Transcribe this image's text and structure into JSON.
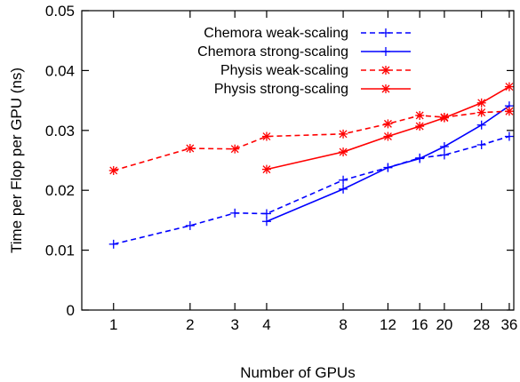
{
  "chart_data": {
    "type": "line",
    "title": "",
    "xlabel": "Number of GPUs",
    "ylabel": "Time per Flop per GPU (ns)",
    "x_scale": "log",
    "xlim": [
      0.75,
      37.5
    ],
    "ylim": [
      0,
      0.05
    ],
    "x_ticks": [
      1,
      2,
      3,
      4,
      8,
      12,
      16,
      20,
      28,
      36
    ],
    "x_tick_labels": [
      "1",
      "2",
      "3",
      "4",
      "8",
      "12",
      "16",
      "20",
      "28",
      "36"
    ],
    "y_ticks": [
      0,
      0.01,
      0.02,
      0.03,
      0.04,
      0.05
    ],
    "y_tick_labels": [
      "0",
      "0.01",
      "0.02",
      "0.03",
      "0.04",
      "0.05"
    ],
    "grid": false,
    "legend_position": "top-center",
    "series": [
      {
        "name": "Chemora weak-scaling",
        "color": "#0000ff",
        "dashed": true,
        "marker": "plus",
        "x": [
          1,
          2,
          3,
          4,
          8,
          12,
          16,
          20,
          28,
          36
        ],
        "y": [
          0.011,
          0.0141,
          0.0162,
          0.0161,
          0.0217,
          0.0238,
          0.0254,
          0.0259,
          0.0276,
          0.029
        ]
      },
      {
        "name": "Chemora strong-scaling",
        "color": "#0000ff",
        "dashed": false,
        "marker": "plus",
        "x": [
          4,
          8,
          12,
          16,
          20,
          28,
          36
        ],
        "y": [
          0.0148,
          0.0202,
          0.0238,
          0.0253,
          0.0273,
          0.0309,
          0.0341
        ]
      },
      {
        "name": "Physis weak-scaling",
        "color": "#ff0000",
        "dashed": true,
        "marker": "star",
        "x": [
          1,
          2,
          3,
          4,
          8,
          12,
          16,
          20,
          28,
          36
        ],
        "y": [
          0.0233,
          0.027,
          0.0269,
          0.029,
          0.0294,
          0.0311,
          0.0325,
          0.0322,
          0.033,
          0.0332
        ]
      },
      {
        "name": "Physis strong-scaling",
        "color": "#ff0000",
        "dashed": false,
        "marker": "star",
        "x": [
          4,
          8,
          12,
          16,
          20,
          28,
          36
        ],
        "y": [
          0.0235,
          0.0264,
          0.029,
          0.0307,
          0.0321,
          0.0346,
          0.0373
        ]
      }
    ]
  }
}
